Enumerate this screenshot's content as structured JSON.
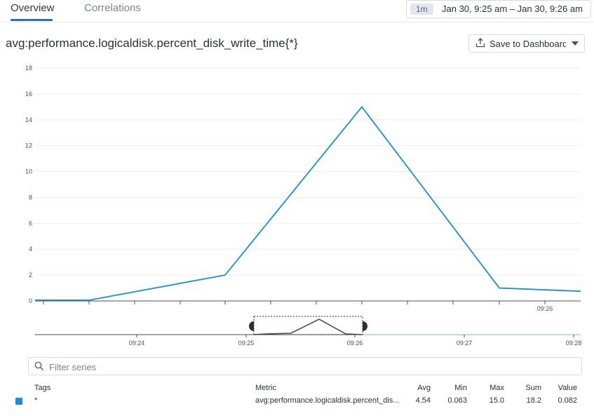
{
  "tabs": [
    {
      "label": "Overview",
      "active": true
    },
    {
      "label": "Correlations",
      "active": false
    }
  ],
  "time_picker": {
    "badge": "1m",
    "range": "Jan 30, 9:25 am – Jan 30, 9:26 am"
  },
  "metric_title": "avg:performance.logicaldisk.percent_disk_write_time{*}",
  "save_button": {
    "label": "Save to Dashboard"
  },
  "icons": {
    "save": "upload-icon",
    "dropdown": "caret-down-icon",
    "filter": "search-icon"
  },
  "colors": {
    "series": "#1790d8",
    "accent": "#2f6fb3",
    "mini_series": "#4a4f57"
  },
  "chart_data": {
    "type": "line",
    "ylim": [
      0,
      18
    ],
    "y_ticks": [
      "0",
      "2",
      "4",
      "6",
      "8",
      "10",
      "12",
      "14",
      "16",
      "18"
    ],
    "x_tick_labels": [
      "09:26"
    ],
    "grid": true,
    "series": [
      {
        "x": [
          "09:25:00",
          "09:25:10",
          "09:25:20",
          "09:25:30",
          "09:25:40",
          "09:25:50",
          "09:26:00"
        ],
        "values": [
          0.06,
          0.06,
          2.0,
          15.0,
          1.0,
          0.75,
          0.75
        ]
      }
    ]
  },
  "overview_chart": {
    "x_tick_labels": [
      "09:24",
      "09:25",
      "09:26",
      "09:27",
      "09:28"
    ]
  },
  "filter": {
    "placeholder": "Filter series"
  },
  "table": {
    "headers": {
      "tags": "Tags",
      "metric": "Metric",
      "avg": "Avg",
      "min": "Min",
      "max": "Max",
      "sum": "Sum",
      "value": "Value"
    },
    "rows": [
      {
        "tags": "*",
        "metric": "avg:performance.logicaldisk.percent_dis...",
        "avg": "4.54",
        "min": "0.063",
        "max": "15.0",
        "sum": "18.2",
        "value": "0.082"
      }
    ]
  }
}
